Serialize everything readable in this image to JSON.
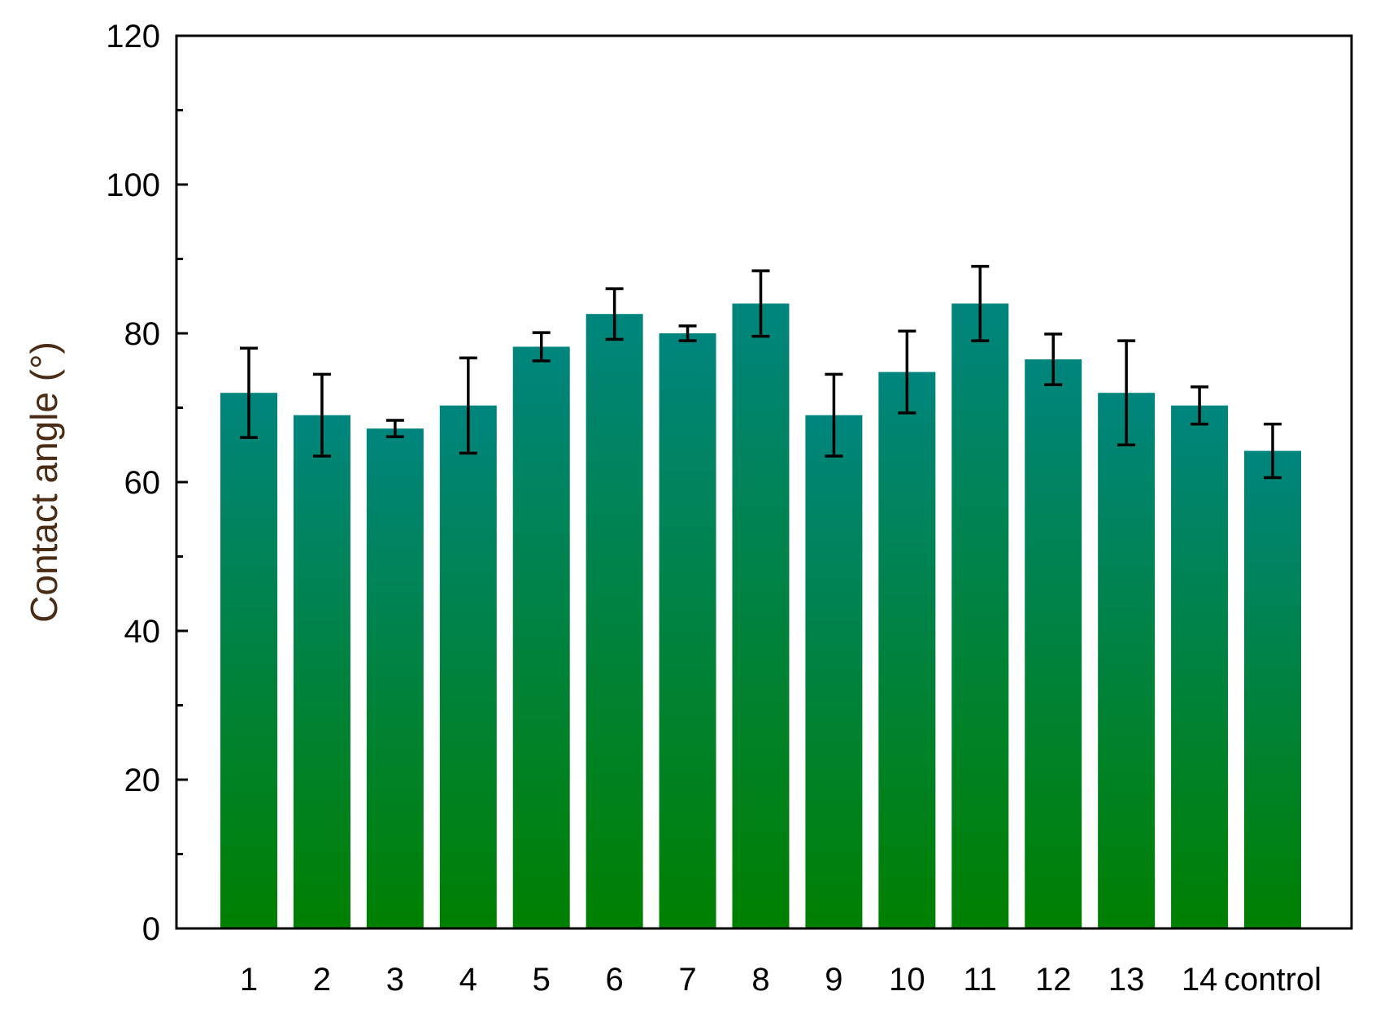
{
  "chart_data": {
    "type": "bar",
    "ylabel": "Contact angle (°)",
    "xlabel": "",
    "title": "",
    "ylim": [
      0,
      120
    ],
    "yticks": [
      0,
      20,
      40,
      60,
      80,
      100,
      120
    ],
    "categories": [
      "1",
      "2",
      "3",
      "4",
      "5",
      "6",
      "7",
      "8",
      "9",
      "10",
      "11",
      "12",
      "13",
      "14",
      "control"
    ],
    "values": [
      72.0,
      69.0,
      67.2,
      70.3,
      78.2,
      82.6,
      80.0,
      84.0,
      69.0,
      74.8,
      84.0,
      76.5,
      72.0,
      70.3,
      64.2
    ],
    "errors": [
      6.0,
      5.5,
      1.1,
      6.4,
      1.9,
      3.4,
      1.0,
      4.4,
      5.5,
      5.5,
      5.0,
      3.4,
      7.0,
      2.5,
      3.6
    ],
    "grid": false,
    "colors": {
      "bar_top": "#00857E",
      "bar_bottom": "#008000",
      "axis": "#000000",
      "ylabel": "#4A2B14",
      "tick_label": "#000000"
    }
  }
}
